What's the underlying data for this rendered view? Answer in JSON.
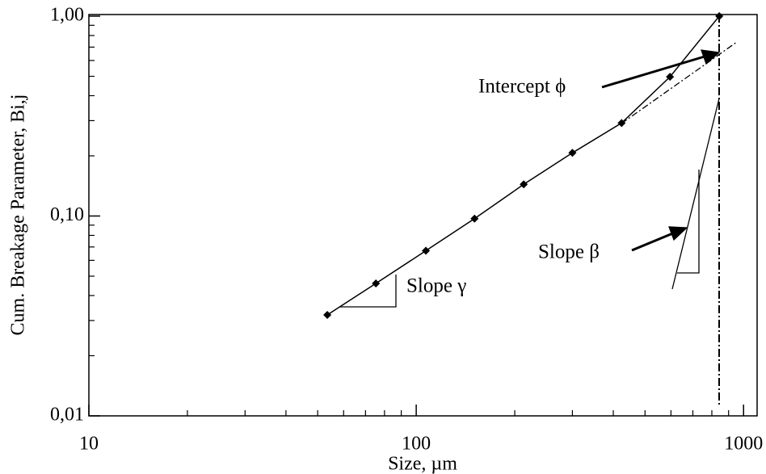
{
  "chart_data": {
    "type": "line",
    "x_label": "Size, µm",
    "y_label": "Cum. Breakage Parameter, Bi,j",
    "x_scale": "log",
    "y_scale": "log",
    "minor_ticks": true,
    "xlim": [
      10,
      1100
    ],
    "ylim": [
      0.01,
      1
    ],
    "xticks": [
      10,
      100,
      1000
    ],
    "yticks": [
      {
        "value": 0.01,
        "label": "0,01"
      },
      {
        "value": 0.1,
        "label": "0,10"
      },
      {
        "value": 1,
        "label": "1,00"
      }
    ],
    "x": [
      53.5,
      75.3,
      107,
      150.7,
      213,
      300,
      424,
      596,
      843
    ],
    "series": [
      {
        "color": "#000000",
        "marker": "diamond",
        "values": [
          0.032,
          0.046,
          0.067,
          0.097,
          0.144,
          0.207,
          0.292,
          0.497,
          1.0
        ]
      }
    ],
    "annotations": [
      "Intercept ϕ",
      "Slope β",
      "Slope γ"
    ]
  }
}
